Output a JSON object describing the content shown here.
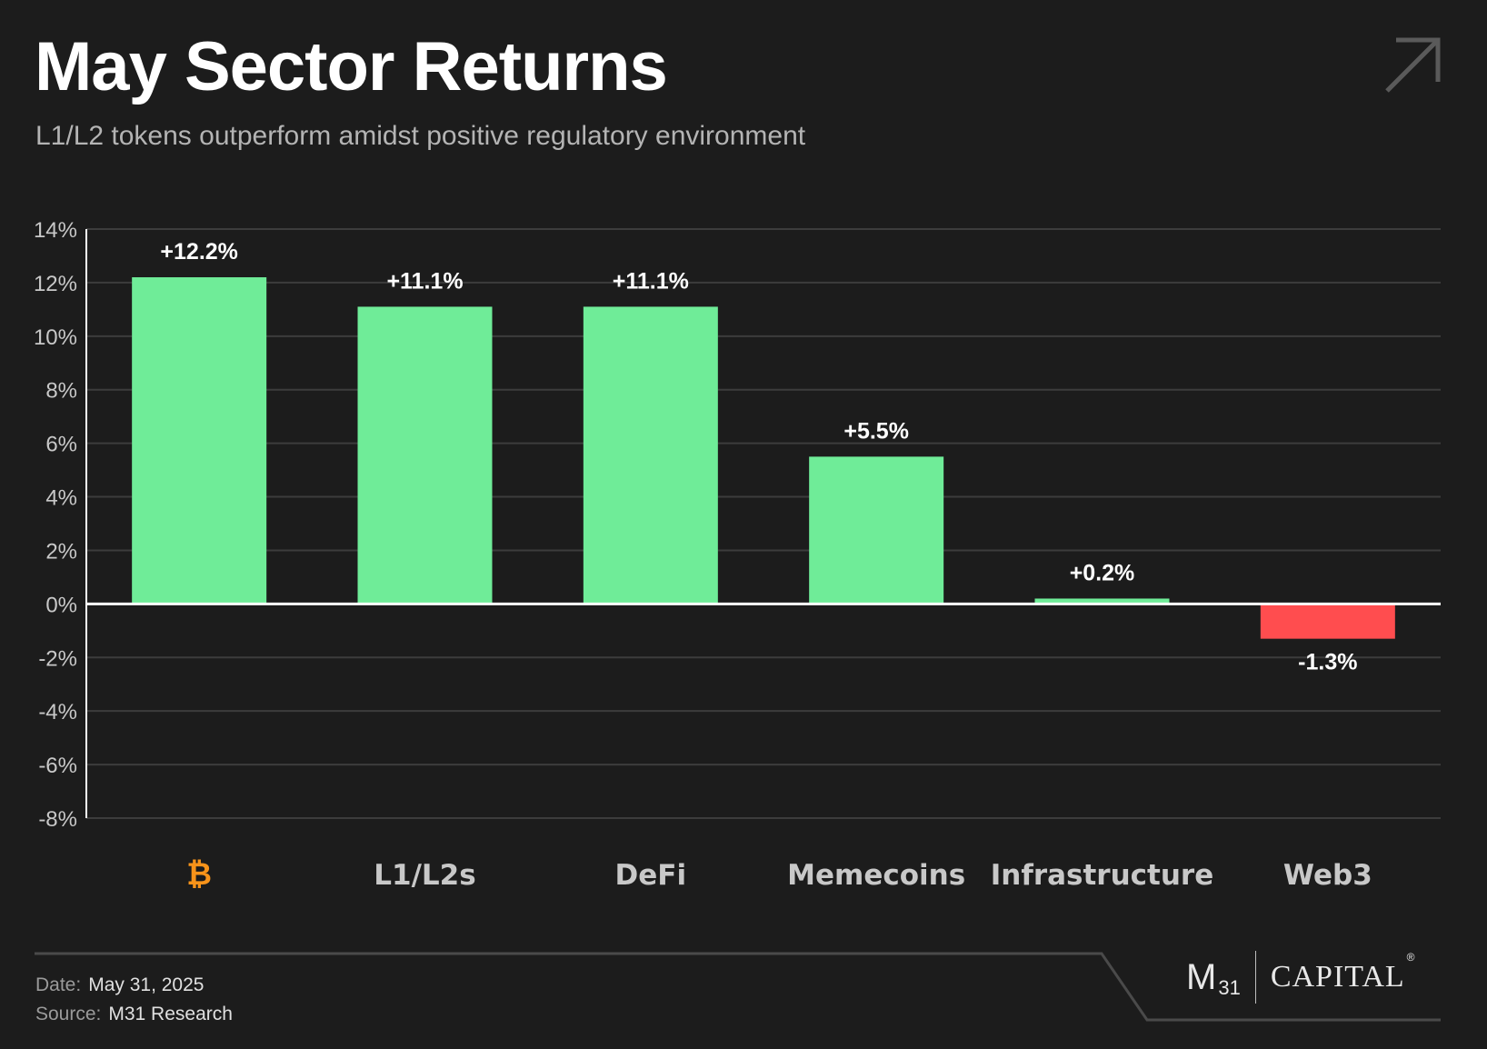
{
  "header": {
    "title": "May Sector Returns",
    "subtitle": "L1/L2 tokens outperform amidst positive regulatory environment"
  },
  "chart_data": {
    "type": "bar",
    "categories": [
      "₿",
      "L1/L2s",
      "DeFi",
      "Memecoins",
      "Infrastructure",
      "Web3"
    ],
    "values": [
      12.2,
      11.1,
      11.1,
      5.5,
      0.2,
      -1.3
    ],
    "data_labels": [
      "+12.2%",
      "+11.1%",
      "+11.1%",
      "+5.5%",
      "+0.2%",
      "-1.3%"
    ],
    "ylim": [
      -8,
      14
    ],
    "yticks": [
      14,
      12,
      10,
      8,
      6,
      4,
      2,
      0,
      -2,
      -4,
      -6,
      -8
    ],
    "ytick_labels": [
      "14%",
      "12%",
      "10%",
      "8%",
      "6%",
      "4%",
      "2%",
      "0%",
      "-2%",
      "-4%",
      "-6%",
      "-8%"
    ],
    "grid": true,
    "colors": {
      "positive": "#6fec98",
      "negative": "#ff4d4f",
      "bitcoin": "#f7931a",
      "axis": "#ffffff",
      "grid": "#3c3c3c",
      "tick": "#c8c8c8",
      "category": "#c8c8c8"
    }
  },
  "footer": {
    "date_key": "Date:",
    "date_value": "May 31, 2025",
    "source_key": "Source:",
    "source_value": "M31 Research",
    "logo_m": "M",
    "logo_sub": "31",
    "logo_capital": "CAPITAL",
    "logo_reg": "®"
  },
  "icons": {
    "corner": "arrow-up-right-icon"
  }
}
